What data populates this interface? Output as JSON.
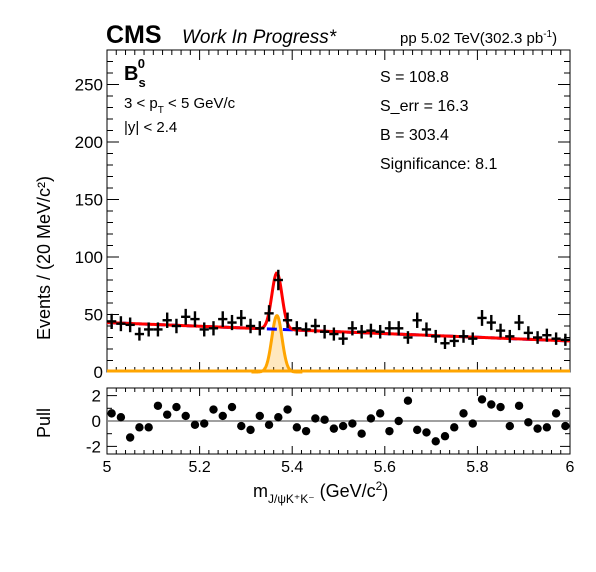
{
  "header": {
    "experiment": "CMS",
    "status": "Work In Progress*",
    "lumi_prefix": "pp 5.02 TeV(302.3 pb",
    "lumi_sup": "-1",
    "lumi_suffix": ")"
  },
  "annotations": {
    "particle_main": "B",
    "particle_sup": "0",
    "particle_sub": "s",
    "pt_cut_prefix": "3 < p",
    "pt_cut_sub": "T",
    "pt_cut_suffix": " < 5 GeV/c",
    "y_cut": "|y| < 2.4",
    "stats": [
      "S = 108.8",
      "S_err = 16.3",
      "B = 303.4",
      "Significance: 8.1"
    ]
  },
  "colors": {
    "data": "#000000",
    "total_fit": "#ff0000",
    "background_fit": "#0000ff",
    "signal_fit": "#ffa500",
    "pull_line": "#808080"
  },
  "chart_data": [
    {
      "type": "scatter",
      "panel": "main",
      "xlabel": "",
      "ylabel": "Events / (20 MeV/c²)",
      "xlim": [
        5.0,
        6.0
      ],
      "ylim": [
        0,
        280
      ],
      "y_ticks": [
        0,
        50,
        100,
        150,
        200,
        250
      ],
      "bin_width": 0.02,
      "x": [
        5.01,
        5.03,
        5.05,
        5.07,
        5.09,
        5.11,
        5.13,
        5.15,
        5.17,
        5.19,
        5.21,
        5.23,
        5.25,
        5.27,
        5.29,
        5.31,
        5.33,
        5.35,
        5.37,
        5.39,
        5.41,
        5.43,
        5.45,
        5.47,
        5.49,
        5.51,
        5.53,
        5.55,
        5.57,
        5.59,
        5.61,
        5.63,
        5.65,
        5.67,
        5.69,
        5.71,
        5.73,
        5.75,
        5.77,
        5.79,
        5.81,
        5.83,
        5.85,
        5.87,
        5.89,
        5.91,
        5.93,
        5.95,
        5.97,
        5.99
      ],
      "values": [
        44,
        42,
        41,
        33,
        37,
        37,
        45,
        40,
        48,
        46,
        37,
        38,
        46,
        43,
        47,
        40,
        38,
        51,
        80,
        45,
        38,
        37,
        40,
        35,
        33,
        29,
        38,
        35,
        36,
        35,
        38,
        38,
        30,
        45,
        37,
        31,
        25,
        27,
        31,
        29,
        47,
        43,
        36,
        31,
        43,
        34,
        30,
        32,
        29,
        28
      ],
      "errors": [
        6.6,
        6.5,
        6.4,
        5.7,
        6.1,
        6.1,
        6.7,
        6.3,
        6.9,
        6.8,
        6.1,
        6.2,
        6.8,
        6.6,
        6.9,
        6.3,
        6.2,
        7.1,
        8.9,
        6.7,
        6.2,
        6.1,
        6.3,
        5.9,
        5.7,
        5.4,
        6.2,
        5.9,
        6.0,
        5.9,
        6.2,
        6.2,
        5.5,
        6.7,
        6.1,
        5.6,
        5.0,
        5.2,
        5.6,
        5.4,
        6.9,
        6.6,
        6.0,
        5.6,
        6.6,
        5.8,
        5.5,
        5.7,
        5.4,
        5.3
      ],
      "fits": {
        "background": {
          "type": "linear",
          "at_x_min": 43,
          "at_x_max": 27
        },
        "signal": {
          "type": "gaussian",
          "mean": 5.367,
          "sigma": 0.011,
          "peak": 49
        }
      },
      "legend": "none"
    },
    {
      "type": "scatter",
      "panel": "pull",
      "xlabel": "m_{J/ψK⁺K⁻} (GeV/c²)",
      "ylabel": "Pull",
      "xlim": [
        5.0,
        6.0
      ],
      "ylim": [
        -2.6,
        2.6
      ],
      "y_ticks": [
        -2,
        0,
        2
      ],
      "x_ticks": [
        5.0,
        5.2,
        5.4,
        5.6,
        5.8,
        6.0
      ],
      "x_tick_labels": [
        "5",
        "5.2",
        "5.4",
        "5.6",
        "5.8",
        "6"
      ],
      "x": [
        5.01,
        5.03,
        5.05,
        5.07,
        5.09,
        5.11,
        5.13,
        5.15,
        5.17,
        5.19,
        5.21,
        5.23,
        5.25,
        5.27,
        5.29,
        5.31,
        5.33,
        5.35,
        5.37,
        5.39,
        5.41,
        5.43,
        5.45,
        5.47,
        5.49,
        5.51,
        5.53,
        5.55,
        5.57,
        5.59,
        5.61,
        5.63,
        5.65,
        5.67,
        5.69,
        5.71,
        5.73,
        5.75,
        5.77,
        5.79,
        5.81,
        5.83,
        5.85,
        5.87,
        5.89,
        5.91,
        5.93,
        5.95,
        5.97,
        5.99
      ],
      "values": [
        0.6,
        0.3,
        -1.3,
        -0.5,
        -0.5,
        1.2,
        0.5,
        1.1,
        0.4,
        -0.3,
        -0.2,
        0.9,
        0.4,
        1.1,
        -0.4,
        -0.7,
        0.4,
        -0.3,
        0.3,
        0.9,
        -0.5,
        -0.8,
        0.2,
        0.1,
        -0.6,
        -0.4,
        -0.2,
        -1.0,
        0.2,
        0.6,
        -0.8,
        0.0,
        1.6,
        -0.7,
        -0.9,
        -1.6,
        -1.2,
        -0.5,
        0.6,
        -0.2,
        1.7,
        1.3,
        1.1,
        -0.4,
        1.2,
        -0.1,
        -0.6,
        -0.5,
        0.6,
        -0.4
      ],
      "reference_line": 0
    }
  ]
}
